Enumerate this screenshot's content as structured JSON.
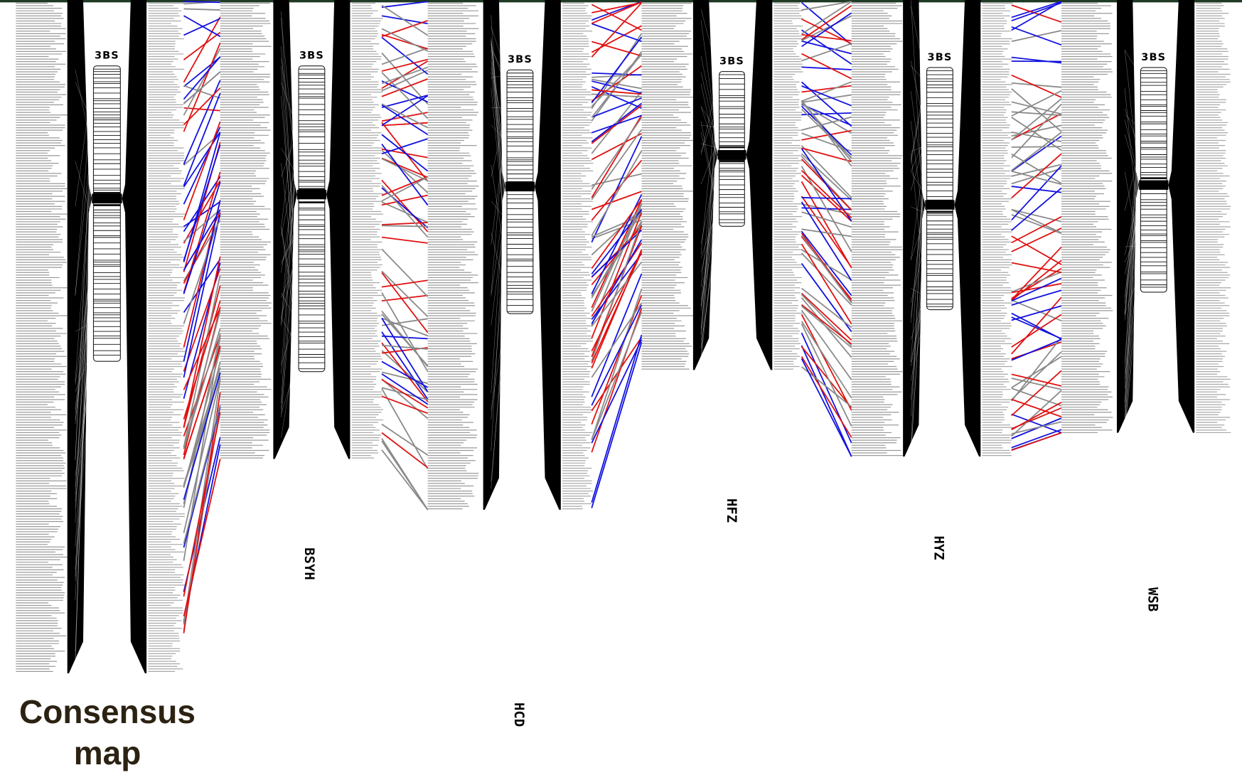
{
  "caption": "Consensus map",
  "maps": [
    {
      "chromosome": "3BS"
    },
    {
      "name": "BSYH",
      "chromosome": "3BS"
    },
    {
      "name": "HCD",
      "chromosome": "3BS"
    },
    {
      "name": "HFZ",
      "chromosome": "3BS"
    },
    {
      "name": "HYZ",
      "chromosome": "3BS"
    },
    {
      "name": "WSB",
      "chromosome": "3BS"
    }
  ]
}
